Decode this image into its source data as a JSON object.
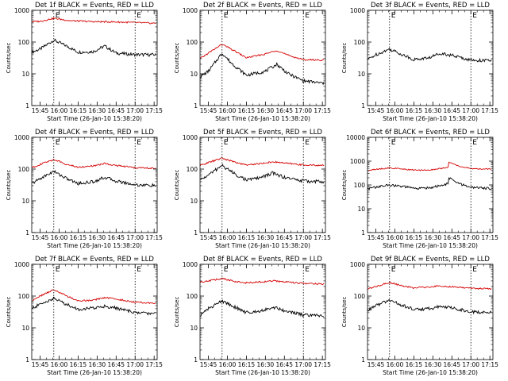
{
  "chart_data": [
    {
      "type": "line",
      "title": "Det 1f BLACK = Events, RED = LLD",
      "ylabel": "Counts/sec",
      "xlabel": "Start Time (26-Jan-10 15:38:20)",
      "yscale": "log",
      "ylim": [
        1,
        1000
      ],
      "yticks": [
        "1",
        "10",
        "100",
        "1000"
      ],
      "xlim": [
        15.64,
        17.29
      ],
      "xticks": [
        "15:45",
        "16:00",
        "16:15",
        "16:30",
        "16:45",
        "17:00",
        "17:15"
      ],
      "marker_label": "E",
      "vlines": [
        15.93,
        17.0
      ],
      "series": [
        {
          "name": "BLACK",
          "color": "#000000",
          "x": [
            15.64,
            15.75,
            15.93,
            16.1,
            16.25,
            16.45,
            16.6,
            16.75,
            17.0,
            17.27
          ],
          "y": [
            48,
            60,
            115,
            75,
            48,
            50,
            75,
            45,
            40,
            40
          ]
        },
        {
          "name": "RED",
          "color": "#d40000",
          "x": [
            15.64,
            15.75,
            15.93,
            16.15,
            16.45,
            16.75,
            17.0,
            17.27
          ],
          "y": [
            440,
            450,
            560,
            470,
            440,
            430,
            410,
            390
          ]
        }
      ]
    },
    {
      "type": "line",
      "title": "Det 2f BLACK = Events, RED = LLD",
      "ylabel": "Counts/sec",
      "xlabel": "Start Time (26-Jan-10 15:38:20)",
      "yscale": "log",
      "ylim": [
        1,
        1000
      ],
      "yticks": [
        "1",
        "10",
        "100",
        "1000"
      ],
      "xlim": [
        15.64,
        17.29
      ],
      "xticks": [
        "15:45",
        "16:00",
        "16:15",
        "16:30",
        "16:45",
        "17:00",
        "17:15"
      ],
      "marker_label": "E",
      "vlines": [
        15.93,
        17.0
      ],
      "series": [
        {
          "name": "BLACK",
          "color": "#000000",
          "x": [
            15.64,
            15.75,
            15.93,
            16.05,
            16.25,
            16.5,
            16.65,
            16.8,
            17.0,
            17.27
          ],
          "y": [
            8,
            12,
            45,
            22,
            9,
            12,
            20,
            10,
            6,
            5
          ]
        },
        {
          "name": "RED",
          "color": "#d40000",
          "x": [
            15.64,
            15.75,
            15.93,
            16.05,
            16.25,
            16.5,
            16.65,
            16.8,
            17.0,
            17.27
          ],
          "y": [
            30,
            45,
            85,
            60,
            32,
            42,
            55,
            38,
            28,
            27
          ]
        }
      ]
    },
    {
      "type": "line",
      "title": "Det 3f BLACK = Events, RED = LLD",
      "ylabel": "Counts/sec",
      "xlabel": "Start Time (26-Jan-10 15:38:20)",
      "yscale": "log",
      "ylim": [
        1,
        1000
      ],
      "yticks": [
        "1",
        "10",
        "100",
        "1000"
      ],
      "xlim": [
        15.64,
        17.29
      ],
      "xticks": [
        "15:45",
        "16:00",
        "16:15",
        "16:30",
        "16:45",
        "17:00",
        "17:15"
      ],
      "marker_label": "E",
      "vlines": [
        15.93,
        17.0
      ],
      "series": [
        {
          "name": "BLACK",
          "color": "#000000",
          "x": [
            15.64,
            15.75,
            15.93,
            16.1,
            16.25,
            16.45,
            16.6,
            16.75,
            17.0,
            17.27
          ],
          "y": [
            28,
            40,
            60,
            40,
            28,
            32,
            45,
            38,
            27,
            26
          ]
        }
      ]
    },
    {
      "type": "line",
      "title": "Det 4f BLACK = Events, RED = LLD",
      "ylabel": "Counts/sec",
      "xlabel": "Start Time (26-Jan-10 15:38:20)",
      "yscale": "log",
      "ylim": [
        1,
        1000
      ],
      "yticks": [
        "1",
        "10",
        "100",
        "1000"
      ],
      "xlim": [
        15.64,
        17.29
      ],
      "xticks": [
        "15:45",
        "16:00",
        "16:15",
        "16:30",
        "16:45",
        "17:00",
        "17:15"
      ],
      "marker_label": "E",
      "vlines": [
        15.93,
        17.0
      ],
      "series": [
        {
          "name": "BLACK",
          "color": "#000000",
          "x": [
            15.64,
            15.75,
            15.93,
            16.1,
            16.25,
            16.45,
            16.6,
            16.75,
            17.0,
            17.27
          ],
          "y": [
            35,
            50,
            85,
            50,
            35,
            40,
            55,
            42,
            32,
            30
          ]
        },
        {
          "name": "RED",
          "color": "#d40000",
          "x": [
            15.64,
            15.75,
            15.93,
            16.1,
            16.25,
            16.45,
            16.6,
            16.75,
            17.0,
            17.27
          ],
          "y": [
            110,
            140,
            200,
            140,
            115,
            125,
            150,
            130,
            110,
            105
          ]
        }
      ]
    },
    {
      "type": "line",
      "title": "Det 5f BLACK = Events, RED = LLD",
      "ylabel": "Counts/sec",
      "xlabel": "Start Time (26-Jan-10 15:38:20)",
      "yscale": "log",
      "ylim": [
        1,
        1000
      ],
      "yticks": [
        "1",
        "10",
        "100",
        "1000"
      ],
      "xlim": [
        15.64,
        17.29
      ],
      "xticks": [
        "15:45",
        "16:00",
        "16:15",
        "16:30",
        "16:45",
        "17:00",
        "17:15"
      ],
      "marker_label": "E",
      "vlines": [
        15.93,
        17.0
      ],
      "series": [
        {
          "name": "BLACK",
          "color": "#000000",
          "x": [
            15.64,
            15.75,
            15.93,
            16.1,
            16.25,
            16.45,
            16.6,
            16.75,
            17.0,
            17.27
          ],
          "y": [
            45,
            65,
            130,
            70,
            45,
            55,
            75,
            55,
            42,
            40
          ]
        },
        {
          "name": "RED",
          "color": "#d40000",
          "x": [
            15.64,
            15.75,
            15.93,
            16.1,
            16.25,
            16.45,
            16.6,
            16.75,
            17.0,
            17.27
          ],
          "y": [
            130,
            160,
            220,
            165,
            135,
            150,
            170,
            155,
            135,
            130
          ]
        }
      ]
    },
    {
      "type": "line",
      "title": "Det 6f BLACK = Events, RED = LLD",
      "ylabel": "Counts/sec",
      "xlabel": "Start Time (26-Jan-10 15:38:20)",
      "yscale": "log",
      "ylim": [
        1,
        10000
      ],
      "yticks": [
        "1",
        "10",
        "100",
        "1000",
        "10000"
      ],
      "xlim": [
        15.64,
        17.29
      ],
      "xticks": [
        "15:45",
        "16:00",
        "16:15",
        "16:30",
        "16:45",
        "17:00",
        "17:15"
      ],
      "marker_label": "E",
      "vlines": [
        15.93,
        17.0
      ],
      "series": [
        {
          "name": "BLACK",
          "color": "#000000",
          "x": [
            15.64,
            15.75,
            15.93,
            16.1,
            16.3,
            16.5,
            16.7,
            16.71,
            16.85,
            17.0,
            17.27
          ],
          "y": [
            70,
            80,
            100,
            85,
            70,
            80,
            110,
            200,
            110,
            80,
            70
          ]
        },
        {
          "name": "RED",
          "color": "#d40000",
          "x": [
            15.64,
            15.75,
            15.93,
            16.1,
            16.3,
            16.5,
            16.7,
            16.71,
            16.85,
            17.0,
            17.27
          ],
          "y": [
            400,
            450,
            520,
            460,
            410,
            440,
            550,
            900,
            600,
            480,
            470
          ]
        }
      ]
    },
    {
      "type": "line",
      "title": "Det 7f BLACK = Events, RED = LLD",
      "ylabel": "Counts/sec",
      "xlabel": "Start Time (26-Jan-10 15:38:20)",
      "yscale": "log",
      "ylim": [
        1,
        1000
      ],
      "yticks": [
        "1",
        "10",
        "100",
        "1000"
      ],
      "xlim": [
        15.64,
        17.29
      ],
      "xticks": [
        "15:45",
        "16:00",
        "16:15",
        "16:30",
        "16:45",
        "17:00",
        "17:15"
      ],
      "marker_label": "E",
      "vlines": [
        15.93,
        17.0
      ],
      "series": [
        {
          "name": "BLACK",
          "color": "#000000",
          "x": [
            15.64,
            15.75,
            15.93,
            16.1,
            16.25,
            16.45,
            16.6,
            16.75,
            17.0,
            17.27
          ],
          "y": [
            40,
            55,
            85,
            55,
            38,
            42,
            48,
            42,
            30,
            28
          ]
        },
        {
          "name": "RED",
          "color": "#d40000",
          "x": [
            15.64,
            15.75,
            15.93,
            16.1,
            16.25,
            16.45,
            16.6,
            16.75,
            17.0,
            17.27
          ],
          "y": [
            70,
            100,
            160,
            100,
            70,
            75,
            90,
            80,
            65,
            60
          ]
        }
      ]
    },
    {
      "type": "line",
      "title": "Det 8f BLACK = Events, RED = LLD",
      "ylabel": "Counts/sec",
      "xlabel": "Start Time (26-Jan-10 15:38:20)",
      "yscale": "log",
      "ylim": [
        1,
        1000
      ],
      "yticks": [
        "1",
        "10",
        "100",
        "1000"
      ],
      "xlim": [
        15.64,
        17.29
      ],
      "xticks": [
        "15:45",
        "16:00",
        "16:15",
        "16:30",
        "16:45",
        "17:00",
        "17:15"
      ],
      "marker_label": "E",
      "vlines": [
        15.93,
        17.0
      ],
      "series": [
        {
          "name": "BLACK",
          "color": "#000000",
          "x": [
            15.64,
            15.75,
            15.93,
            16.1,
            16.25,
            16.45,
            16.6,
            16.75,
            17.0,
            17.27
          ],
          "y": [
            25,
            40,
            70,
            45,
            30,
            35,
            45,
            35,
            25,
            24
          ]
        },
        {
          "name": "RED",
          "color": "#d40000",
          "x": [
            15.64,
            15.75,
            15.93,
            16.1,
            16.25,
            16.45,
            16.6,
            16.75,
            17.0,
            17.27
          ],
          "y": [
            280,
            300,
            360,
            290,
            260,
            280,
            300,
            280,
            250,
            240
          ]
        }
      ]
    },
    {
      "type": "line",
      "title": "Det 9f BLACK = Events, RED = LLD",
      "ylabel": "Counts/sec",
      "xlabel": "Start Time (26-Jan-10 15:38:20)",
      "yscale": "log",
      "ylim": [
        1,
        1000
      ],
      "yticks": [
        "1",
        "10",
        "100",
        "1000"
      ],
      "xlim": [
        15.64,
        17.29
      ],
      "xticks": [
        "15:45",
        "16:00",
        "16:15",
        "16:30",
        "16:45",
        "17:00",
        "17:15"
      ],
      "marker_label": "E",
      "vlines": [
        15.93,
        17.0
      ],
      "series": [
        {
          "name": "BLACK",
          "color": "#000000",
          "x": [
            15.64,
            15.75,
            15.93,
            16.1,
            16.25,
            16.45,
            16.6,
            16.75,
            17.0,
            17.27
          ],
          "y": [
            35,
            50,
            75,
            50,
            38,
            40,
            48,
            42,
            32,
            30
          ]
        },
        {
          "name": "RED",
          "color": "#d40000",
          "x": [
            15.64,
            15.75,
            15.93,
            16.1,
            16.25,
            16.45,
            16.6,
            16.75,
            17.0,
            17.27
          ],
          "y": [
            170,
            200,
            270,
            210,
            180,
            190,
            210,
            195,
            175,
            170
          ]
        }
      ]
    }
  ]
}
